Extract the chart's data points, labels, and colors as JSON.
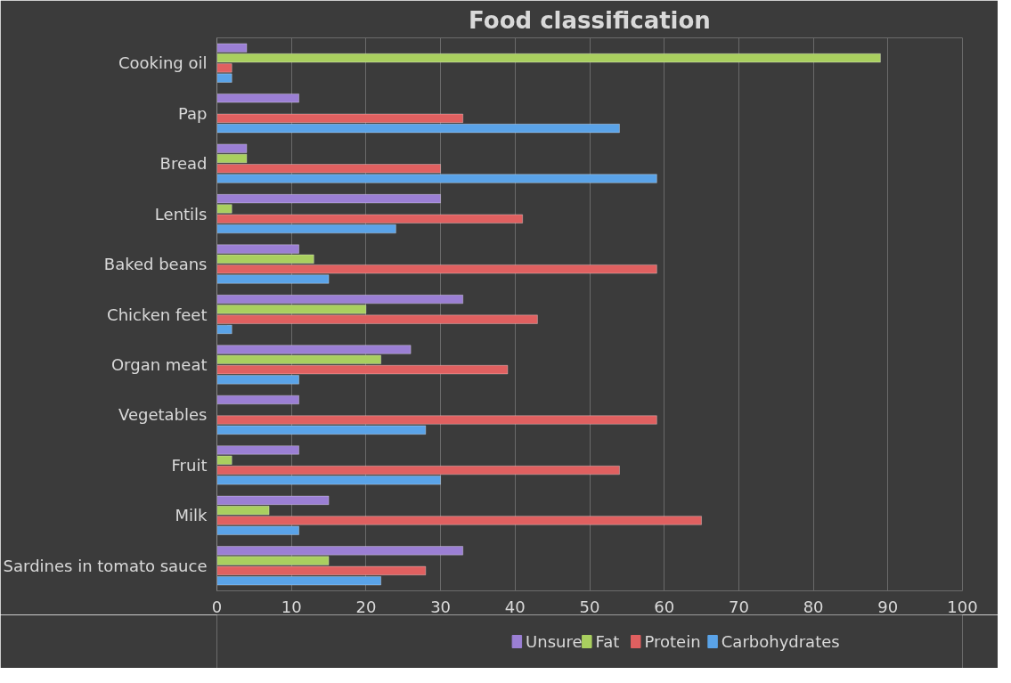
{
  "chart_data": {
    "type": "bar",
    "orientation": "horizontal",
    "title": "Food classification",
    "categories": [
      "Cooking oil",
      "Pap",
      "Bread",
      "Lentils",
      "Baked beans",
      "Chicken feet",
      "Organ meat",
      "Vegetables",
      "Fruit",
      "Milk",
      "Sardines in tomato sauce"
    ],
    "series": [
      {
        "name": "Unsure",
        "color": "#9b7fd4",
        "values": [
          4,
          11,
          4,
          30,
          11,
          33,
          26,
          11,
          11,
          15,
          33
        ]
      },
      {
        "name": "Fat",
        "color": "#a9cf5f",
        "values": [
          89,
          null,
          4,
          2,
          13,
          20,
          22,
          null,
          2,
          7,
          15
        ]
      },
      {
        "name": "Protein",
        "color": "#e06060",
        "values": [
          2,
          33,
          30,
          41,
          59,
          43,
          39,
          59,
          54,
          65,
          28
        ]
      },
      {
        "name": "Carbohydrates",
        "color": "#5aa3e8",
        "values": [
          2,
          54,
          59,
          24,
          15,
          2,
          11,
          28,
          30,
          11,
          22
        ]
      }
    ],
    "xlim": [
      0,
      100
    ],
    "xticks": [
      0,
      10,
      20,
      30,
      40,
      50,
      60,
      70,
      80,
      90,
      100
    ],
    "grid": "x",
    "legend": "bottom"
  }
}
